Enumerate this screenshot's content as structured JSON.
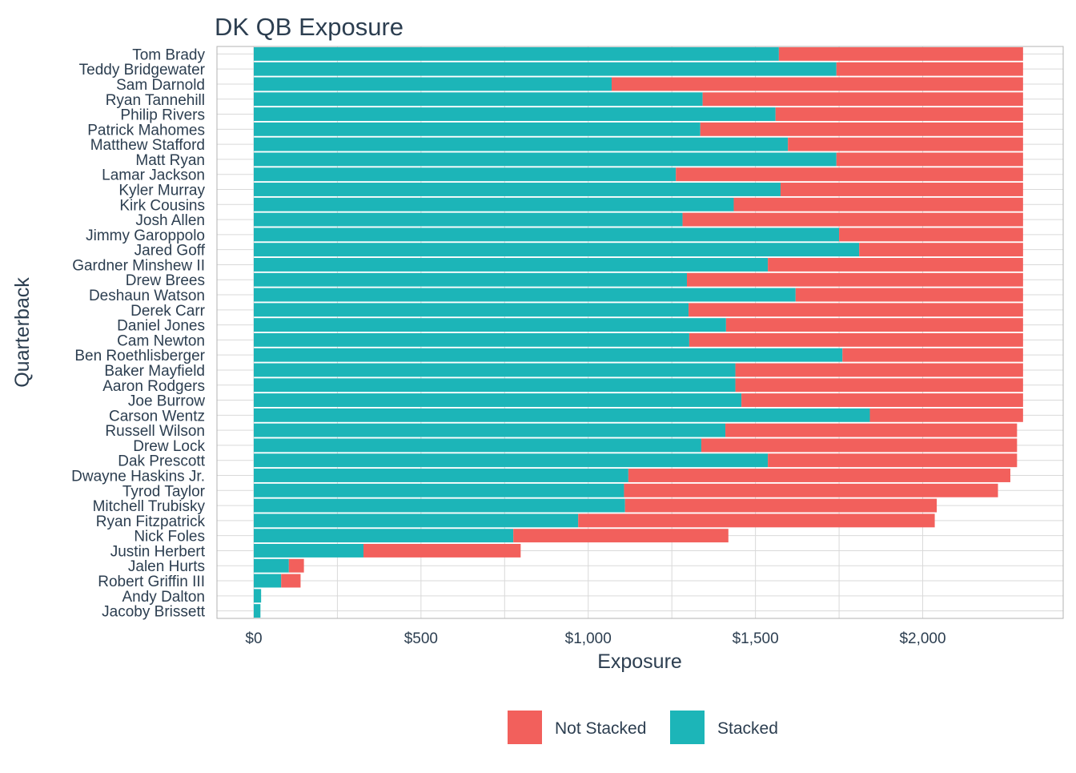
{
  "chart_data": {
    "type": "bar",
    "orientation": "horizontal",
    "stacked": true,
    "title": "DK QB Exposure",
    "xlabel": "Exposure",
    "ylabel": "Quarterback",
    "xlim": [
      -110,
      2420
    ],
    "x_ticks": [
      0,
      500,
      1000,
      1500,
      2000
    ],
    "x_tick_labels": [
      "$0",
      "$500",
      "$1,000",
      "$1,500",
      "$2,000"
    ],
    "grid": true,
    "legend_position": "bottom",
    "categories": [
      "Tom Brady",
      "Teddy Bridgewater",
      "Sam Darnold",
      "Ryan Tannehill",
      "Philip Rivers",
      "Patrick Mahomes",
      "Matthew Stafford",
      "Matt Ryan",
      "Lamar Jackson",
      "Kyler Murray",
      "Kirk Cousins",
      "Josh Allen",
      "Jimmy Garoppolo",
      "Jared Goff",
      "Gardner Minshew II",
      "Drew Brees",
      "Deshaun Watson",
      "Derek Carr",
      "Daniel Jones",
      "Cam Newton",
      "Ben Roethlisberger",
      "Baker Mayfield",
      "Aaron Rodgers",
      "Joe Burrow",
      "Carson Wentz",
      "Russell Wilson",
      "Drew Lock",
      "Dak Prescott",
      "Dwayne Haskins Jr.",
      "Tyrod Taylor",
      "Mitchell Trubisky",
      "Ryan Fitzpatrick",
      "Nick Foles",
      "Justin Herbert",
      "Jalen Hurts",
      "Robert Griffin III",
      "Andy Dalton",
      "Jacoby Brissett"
    ],
    "series": [
      {
        "name": "Stacked",
        "color": "#1cb5b8",
        "values": [
          1570,
          1742,
          1070,
          1342,
          1560,
          1335,
          1597,
          1742,
          1262,
          1575,
          1435,
          1282,
          1750,
          1810,
          1537,
          1295,
          1620,
          1300,
          1412,
          1302,
          1760,
          1440,
          1440,
          1458,
          1842,
          1410,
          1338,
          1537,
          1120,
          1107,
          1110,
          970,
          776,
          328,
          105,
          82,
          22,
          20
        ]
      },
      {
        "name": "Not Stacked",
        "color": "#f2605c",
        "values": [
          730,
          558,
          1230,
          958,
          740,
          965,
          703,
          558,
          1038,
          725,
          865,
          1018,
          550,
          490,
          763,
          1005,
          680,
          1000,
          888,
          998,
          540,
          860,
          860,
          842,
          458,
          872,
          944,
          745,
          1142,
          1118,
          932,
          1066,
          643,
          470,
          45,
          58,
          0,
          0
        ]
      }
    ],
    "legend": [
      "Not Stacked",
      "Stacked"
    ]
  }
}
